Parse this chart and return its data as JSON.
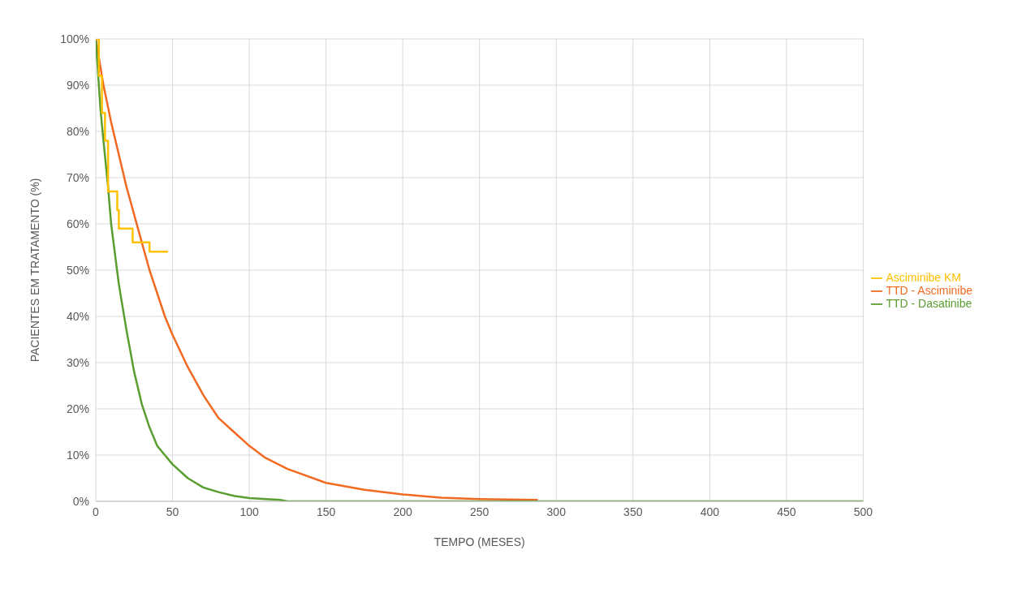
{
  "chart_data": {
    "type": "line",
    "xlabel": "TEMPO (MESES)",
    "ylabel": "PACIENTES EM TRATAMENTO (%)",
    "xlim": [
      0,
      500
    ],
    "xticks": [
      0,
      50,
      100,
      150,
      200,
      250,
      300,
      350,
      400,
      450,
      500
    ],
    "ylim": [
      0,
      100
    ],
    "yticks": [
      {
        "value": 0,
        "label": "0%"
      },
      {
        "value": 10,
        "label": "10%"
      },
      {
        "value": 20,
        "label": "20%"
      },
      {
        "value": 30,
        "label": "30%"
      },
      {
        "value": 40,
        "label": "40%"
      },
      {
        "value": 50,
        "label": "50%"
      },
      {
        "value": 60,
        "label": "60%"
      },
      {
        "value": 70,
        "label": "70%"
      },
      {
        "value": 80,
        "label": "80%"
      },
      {
        "value": 90,
        "label": "90%"
      },
      {
        "value": 100,
        "label": "100%"
      }
    ],
    "grid": true,
    "legend": "right",
    "marker": "none",
    "line_style": "solid",
    "series": [
      {
        "name": "TTD - Asciminibe",
        "color": "#f26a22",
        "x": [
          0,
          5,
          10,
          15,
          20,
          25,
          30,
          35,
          40,
          45,
          50,
          60,
          70,
          80,
          90,
          100,
          110,
          125,
          150,
          175,
          200,
          225,
          250,
          288
        ],
        "values": [
          100,
          90,
          82,
          75,
          68,
          62,
          56,
          50,
          45,
          40,
          36,
          29,
          23,
          18,
          15,
          12,
          9.5,
          7,
          4,
          2.5,
          1.5,
          0.8,
          0.5,
          0.3
        ]
      },
      {
        "name": "TTD - Dasatinibe",
        "color": "#5a9e2f",
        "x": [
          0,
          3,
          5,
          8,
          10,
          15,
          20,
          25,
          30,
          35,
          40,
          45,
          50,
          60,
          70,
          80,
          90,
          100,
          120,
          125,
          500
        ],
        "values": [
          100,
          85,
          78,
          68,
          60,
          47,
          37,
          28,
          21,
          16,
          12,
          10,
          8,
          5,
          3,
          2,
          1.2,
          0.7,
          0.3,
          0,
          0
        ]
      },
      {
        "name": "Asciminibe KM",
        "type": "step",
        "color": "#ffc000",
        "x": [
          0,
          2,
          4,
          6,
          8,
          12,
          14,
          15,
          22,
          24,
          32,
          35,
          47
        ],
        "values": [
          100,
          92,
          84,
          78,
          67,
          67,
          63,
          59,
          59,
          56,
          56,
          54,
          54
        ]
      }
    ]
  }
}
